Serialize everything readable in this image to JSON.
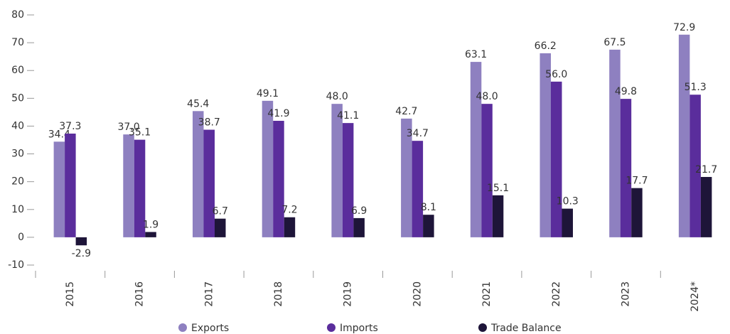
{
  "chart_data": {
    "type": "bar",
    "categories": [
      "2015",
      "2016",
      "2017",
      "2018",
      "2019",
      "2020",
      "2021",
      "2022",
      "2023",
      "2024*"
    ],
    "series": [
      {
        "name": "Exports",
        "color": "#8e80c0",
        "values": [
          34.4,
          37.0,
          45.4,
          49.1,
          48.0,
          42.7,
          63.1,
          66.2,
          67.5,
          72.9
        ],
        "value_labels": [
          "34.4",
          "37.0",
          "45.4",
          "49.1",
          "48.0",
          "42.7",
          "63.1",
          "66.2",
          "67.5",
          "72.9"
        ]
      },
      {
        "name": "Imports",
        "color": "#5a2d9c",
        "values": [
          37.3,
          35.1,
          38.7,
          41.9,
          41.1,
          34.7,
          48.0,
          56.0,
          49.8,
          51.3
        ],
        "value_labels": [
          "37.3",
          "35.1",
          "38.7",
          "41.9",
          "41.1",
          "34.7",
          "48.0",
          "56.0",
          "49.8",
          "51.3"
        ]
      },
      {
        "name": "Trade Balance",
        "color": "#1e1539",
        "values": [
          -2.9,
          1.9,
          6.7,
          7.2,
          6.9,
          8.1,
          15.1,
          10.3,
          17.7,
          21.7
        ],
        "value_labels": [
          "-2.9",
          "1.9",
          "6.7",
          "7.2",
          "6.9",
          "8.1",
          "15.1",
          "10.3",
          "17.7",
          "21.7"
        ]
      }
    ],
    "ylim": [
      -10,
      80
    ],
    "yticks": [
      -10,
      0,
      10,
      20,
      30,
      40,
      50,
      60,
      70,
      80
    ],
    "legend": "bottom"
  }
}
